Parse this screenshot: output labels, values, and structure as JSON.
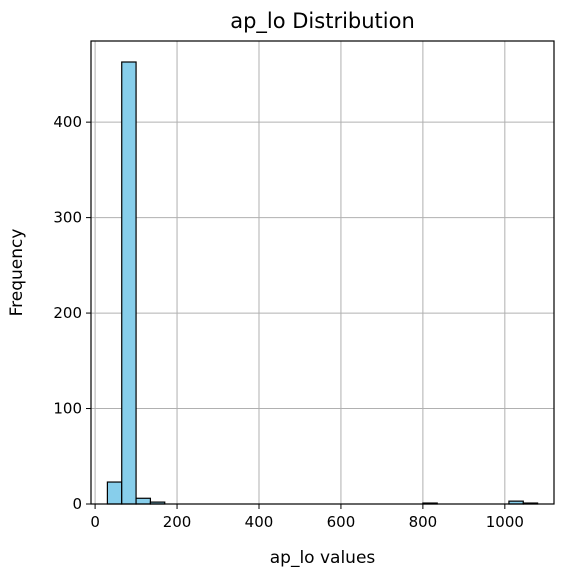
{
  "chart_data": {
    "type": "bar",
    "title": "ap_lo Distribution",
    "xlabel": "ap_lo values",
    "ylabel": "Frequency",
    "xlim": [
      -10,
      1120
    ],
    "ylim": [
      0,
      485
    ],
    "x_ticks": [
      0,
      200,
      400,
      600,
      800,
      1000
    ],
    "y_ticks": [
      0,
      100,
      200,
      300,
      400
    ],
    "grid": true,
    "bin_edges": [
      30,
      65,
      100,
      135,
      170,
      205,
      240,
      275,
      310,
      345,
      380,
      415,
      450,
      485,
      520,
      555,
      590,
      625,
      660,
      695,
      730,
      765,
      800,
      835,
      870,
      905,
      940,
      975,
      1010,
      1045,
      1080
    ],
    "values": [
      23,
      463,
      6,
      2,
      0,
      0,
      0,
      0,
      0,
      0,
      0,
      0,
      0,
      0,
      0,
      0,
      0,
      0,
      0,
      0,
      0,
      0,
      1,
      0,
      0,
      0,
      0,
      0,
      3,
      1
    ],
    "bar_color": "#87ceeb",
    "edge_color": "#000000",
    "grid_color": "#b0b0b0"
  }
}
